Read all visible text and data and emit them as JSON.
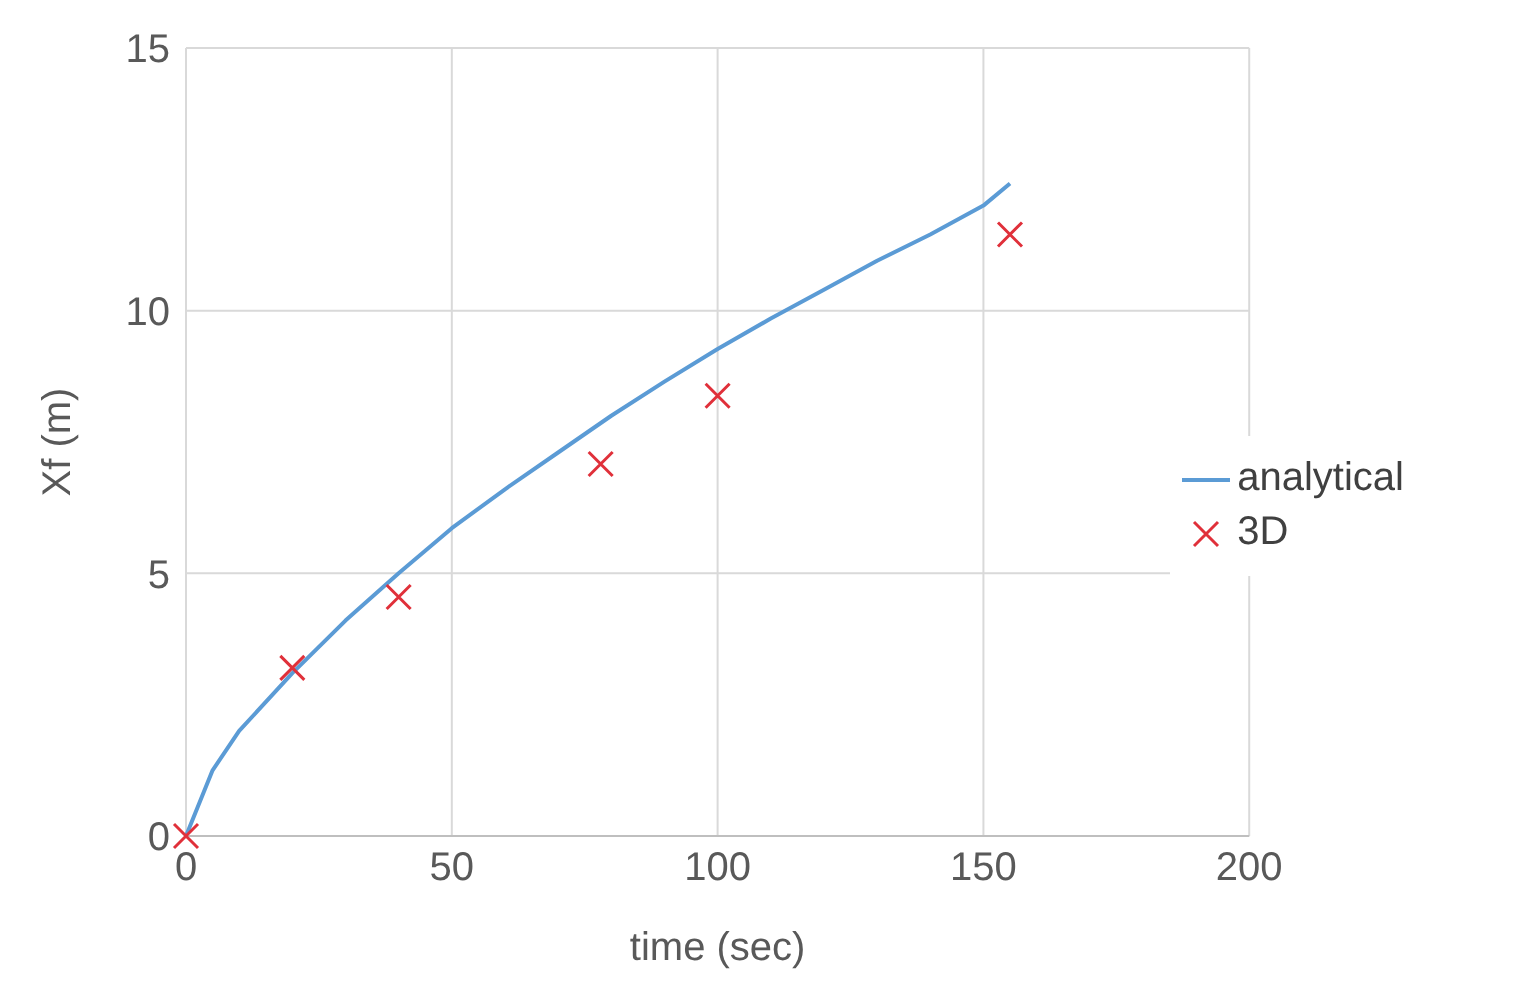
{
  "chart_data": {
    "type": "line",
    "xlabel": "time (sec)",
    "ylabel": "Xf (m)",
    "xlim": [
      0,
      200
    ],
    "xticks": [
      0,
      50,
      100,
      150,
      200
    ],
    "ylim": [
      0,
      15
    ],
    "yticks": [
      0,
      5,
      10,
      15
    ],
    "grid": true,
    "legend": "right",
    "series": [
      {
        "name": "analytical",
        "color": "#5b9bd5",
        "marker": "none",
        "x": [
          0,
          5,
          10,
          20,
          30,
          40,
          50,
          60,
          70,
          80,
          90,
          100,
          110,
          120,
          130,
          140,
          150,
          155
        ],
        "values": [
          0,
          1.25,
          2.0,
          3.1,
          4.1,
          5.0,
          5.86,
          6.6,
          7.3,
          8.0,
          8.65,
          9.27,
          9.85,
          10.4,
          10.95,
          11.45,
          12.0,
          12.42
        ]
      },
      {
        "name": "3D",
        "type": "scatter",
        "color": "#e0303a",
        "marker": "cross",
        "x": [
          0,
          20,
          40,
          78,
          100,
          155
        ],
        "values": [
          0,
          3.2,
          4.55,
          7.08,
          8.38,
          11.45
        ]
      }
    ]
  }
}
